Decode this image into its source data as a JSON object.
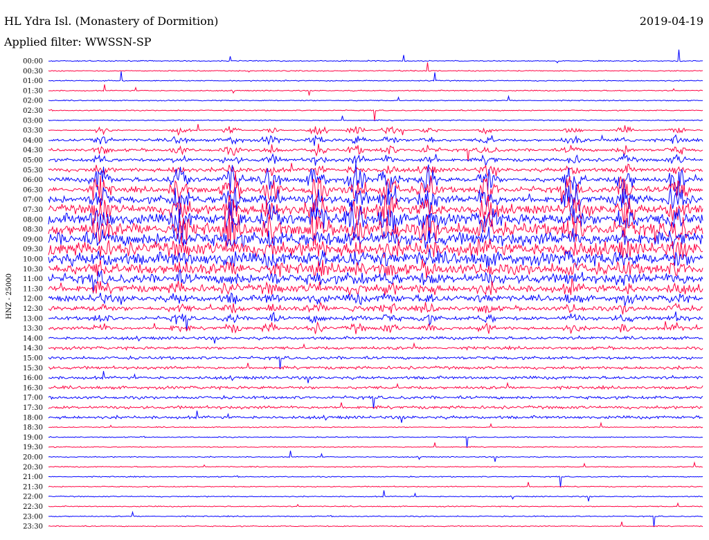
{
  "header": {
    "station": "HL Ydra Isl. (Monastery of Dormition)",
    "date": "2019-04-19",
    "filter": "Applied filter: WWSSN-SP"
  },
  "colors": {
    "series_a": "#0000ff",
    "series_b": "#ff0040",
    "background": "#ffffff",
    "text": "#000000"
  },
  "chart_data": {
    "type": "line",
    "title": "HL Ydra Isl. (Monastery of Dormition)",
    "ylabel": "HNZ - 25000",
    "xlabel": "",
    "grid": false,
    "legend": "none",
    "rows": [
      "00:00",
      "00:30",
      "01:00",
      "01:30",
      "02:00",
      "02:30",
      "03:00",
      "03:30",
      "04:00",
      "04:30",
      "05:00",
      "05:30",
      "06:00",
      "06:30",
      "07:00",
      "07:30",
      "08:00",
      "08:30",
      "09:00",
      "09:30",
      "10:00",
      "10:30",
      "11:00",
      "11:30",
      "12:00",
      "12:30",
      "13:00",
      "13:30",
      "14:00",
      "14:30",
      "15:00",
      "15:30",
      "16:00",
      "16:30",
      "17:00",
      "17:30",
      "18:00",
      "18:30",
      "19:00",
      "19:30",
      "20:00",
      "20:30",
      "21:00",
      "21:30",
      "22:00",
      "22:30",
      "23:00",
      "23:30"
    ],
    "trace_colors": [
      "blue",
      "red"
    ],
    "bursts": [
      0.08,
      0.2,
      0.28,
      0.34,
      0.41,
      0.47,
      0.52,
      0.58,
      0.67,
      0.8,
      0.88,
      0.96
    ],
    "active_period": [
      "04:00",
      "13:30"
    ]
  }
}
